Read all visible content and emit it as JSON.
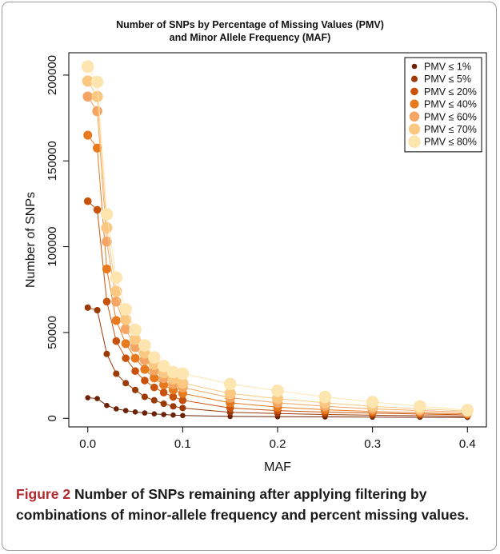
{
  "chart_data": {
    "type": "line",
    "title_line1": "Number of SNPs by Percentage of Missing Values (PMV)",
    "title_line2": "and Minor Allele Frequency (MAF)",
    "xlabel": "MAF",
    "ylabel": "Number of SNPs",
    "xlim": [
      -0.02,
      0.42
    ],
    "ylim": [
      -5000,
      213000
    ],
    "x_ticks": [
      0.0,
      0.1,
      0.2,
      0.3,
      0.4
    ],
    "x_tick_labels": [
      "0.0",
      "0.1",
      "0.2",
      "0.3",
      "0.4"
    ],
    "y_ticks": [
      0,
      50000,
      100000,
      150000,
      200000
    ],
    "y_tick_labels": [
      "0",
      "50000",
      "100000",
      "150000",
      "200000"
    ],
    "grid": false,
    "legend_position": "top-right",
    "x": [
      0.0,
      0.01,
      0.02,
      0.03,
      0.04,
      0.05,
      0.06,
      0.07,
      0.08,
      0.09,
      0.1,
      0.15,
      0.2,
      0.25,
      0.3,
      0.35,
      0.4
    ],
    "series": [
      {
        "name": "PMV ≤   1%",
        "color": "#6b2206",
        "values": [
          12000,
          11500,
          7500,
          5500,
          4500,
          3700,
          3100,
          2600,
          2200,
          1900,
          1600,
          1100,
          900,
          800,
          700,
          600,
          500
        ]
      },
      {
        "name": "PMV ≤   5%",
        "color": "#9c3a06",
        "values": [
          64500,
          63000,
          37500,
          26000,
          20500,
          16500,
          12500,
          10500,
          8500,
          7000,
          6000,
          3500,
          2800,
          2200,
          1800,
          1500,
          1200
        ]
      },
      {
        "name": "PMV ≤ 20%",
        "color": "#c8520b",
        "values": [
          126500,
          121500,
          68000,
          45000,
          35000,
          27500,
          22000,
          18000,
          15000,
          12500,
          10500,
          6000,
          4500,
          3600,
          3000,
          2500,
          2000
        ]
      },
      {
        "name": "PMV ≤ 40%",
        "color": "#e87a1e",
        "values": [
          165000,
          157500,
          87000,
          57000,
          43500,
          35000,
          28500,
          23500,
          19500,
          16500,
          14500,
          9000,
          6500,
          5000,
          4000,
          3200,
          2600
        ]
      },
      {
        "name": "PMV ≤ 60%",
        "color": "#f4a563",
        "values": [
          187500,
          179000,
          103000,
          68000,
          52000,
          41500,
          34000,
          28000,
          23500,
          20000,
          18000,
          12000,
          9000,
          7000,
          5500,
          4500,
          3500
        ]
      },
      {
        "name": "PMV ≤ 70%",
        "color": "#fac880",
        "values": [
          196500,
          187500,
          111000,
          74000,
          57500,
          46000,
          38000,
          31500,
          26500,
          23000,
          20500,
          14500,
          11500,
          9000,
          7000,
          5500,
          4200
        ]
      },
      {
        "name": "PMV ≤ 80%",
        "color": "#fde5b0",
        "values": [
          205000,
          196000,
          119000,
          82000,
          63500,
          51500,
          42500,
          35500,
          30500,
          27000,
          26000,
          20000,
          16000,
          12500,
          9500,
          7000,
          4800
        ]
      }
    ]
  },
  "caption": {
    "label": "Figure 2",
    "text": "Number of SNPs remaining after applying filtering by combinations of minor-allele frequency and percent missing values."
  }
}
